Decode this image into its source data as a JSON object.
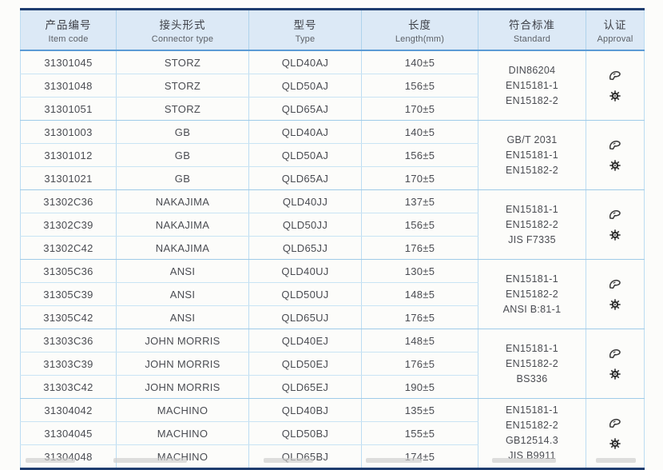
{
  "table": {
    "columns": [
      {
        "zh": "产品编号",
        "en": "Item code"
      },
      {
        "zh": "接头形式",
        "en": "Connector type"
      },
      {
        "zh": "型号",
        "en": "Type"
      },
      {
        "zh": "长度",
        "en": "Length(mm)"
      },
      {
        "zh": "符合标准",
        "en": "Standard"
      },
      {
        "zh": "认证",
        "en": "Approval"
      }
    ],
    "groups": [
      {
        "connector": "STORZ",
        "rows": [
          {
            "item_code": "31301045",
            "connector": "STORZ",
            "type": "QLD40AJ",
            "length": "140±5"
          },
          {
            "item_code": "31301048",
            "connector": "STORZ",
            "type": "QLD50AJ",
            "length": "156±5"
          },
          {
            "item_code": "31301051",
            "connector": "STORZ",
            "type": "QLD65AJ",
            "length": "170±5"
          }
        ],
        "standards": [
          "DIN86204",
          "EN15181-1",
          "EN15182-2"
        ],
        "approvals": [
          "stamp-logo-icon",
          "gear-badge-icon"
        ]
      },
      {
        "connector": "GB",
        "rows": [
          {
            "item_code": "31301003",
            "connector": "GB",
            "type": "QLD40AJ",
            "length": "140±5"
          },
          {
            "item_code": "31301012",
            "connector": "GB",
            "type": "QLD50AJ",
            "length": "156±5"
          },
          {
            "item_code": "31301021",
            "connector": "GB",
            "type": "QLD65AJ",
            "length": "170±5"
          }
        ],
        "standards": [
          "GB/T 2031",
          "EN15181-1",
          "EN15182-2"
        ],
        "approvals": [
          "stamp-logo-icon",
          "gear-badge-icon"
        ]
      },
      {
        "connector": "NAKAJIMA",
        "rows": [
          {
            "item_code": "31302C36",
            "connector": "NAKAJIMA",
            "type": "QLD40JJ",
            "length": "137±5"
          },
          {
            "item_code": "31302C39",
            "connector": "NAKAJIMA",
            "type": "QLD50JJ",
            "length": "156±5"
          },
          {
            "item_code": "31302C42",
            "connector": "NAKAJIMA",
            "type": "QLD65JJ",
            "length": "176±5"
          }
        ],
        "standards": [
          "EN15181-1",
          "EN15182-2",
          "JIS F7335"
        ],
        "approvals": [
          "stamp-logo-icon",
          "gear-badge-icon"
        ]
      },
      {
        "connector": "ANSI",
        "rows": [
          {
            "item_code": "31305C36",
            "connector": "ANSI",
            "type": "QLD40UJ",
            "length": "130±5"
          },
          {
            "item_code": "31305C39",
            "connector": "ANSI",
            "type": "QLD50UJ",
            "length": "148±5"
          },
          {
            "item_code": "31305C42",
            "connector": "ANSI",
            "type": "QLD65UJ",
            "length": "176±5"
          }
        ],
        "standards": [
          "EN15181-1",
          "EN15182-2",
          "ANSI B:81-1"
        ],
        "approvals": [
          "stamp-logo-icon",
          "gear-badge-icon"
        ]
      },
      {
        "connector": "JOHN MORRIS",
        "rows": [
          {
            "item_code": "31303C36",
            "connector": "JOHN MORRIS",
            "type": "QLD40EJ",
            "length": "148±5"
          },
          {
            "item_code": "31303C39",
            "connector": "JOHN MORRIS",
            "type": "QLD50EJ",
            "length": "176±5"
          },
          {
            "item_code": "31303C42",
            "connector": "JOHN MORRIS",
            "type": "QLD65EJ",
            "length": "190±5"
          }
        ],
        "standards": [
          "EN15181-1",
          "EN15182-2",
          "BS336"
        ],
        "approvals": [
          "stamp-logo-icon",
          "gear-badge-icon"
        ]
      },
      {
        "connector": "MACHINO",
        "rows": [
          {
            "item_code": "31304042",
            "connector": "MACHINO",
            "type": "QLD40BJ",
            "length": "135±5"
          },
          {
            "item_code": "31304045",
            "connector": "MACHINO",
            "type": "QLD50BJ",
            "length": "155±5"
          },
          {
            "item_code": "31304048",
            "connector": "MACHINO",
            "type": "QLD65BJ",
            "length": "174±5"
          }
        ],
        "standards": [
          "EN15181-1",
          "EN15182-2",
          "GB12514.3",
          "JIS B9911"
        ],
        "approvals": [
          "stamp-logo-icon",
          "gear-badge-icon"
        ]
      }
    ]
  },
  "colors": {
    "border_navy": "#1e3c6e",
    "header_bg": "#dce9f6",
    "header_underline": "#5b9bd5",
    "grid_line": "#bcdcf2",
    "group_line": "#9fcbe8",
    "text": "#4a4c52"
  }
}
